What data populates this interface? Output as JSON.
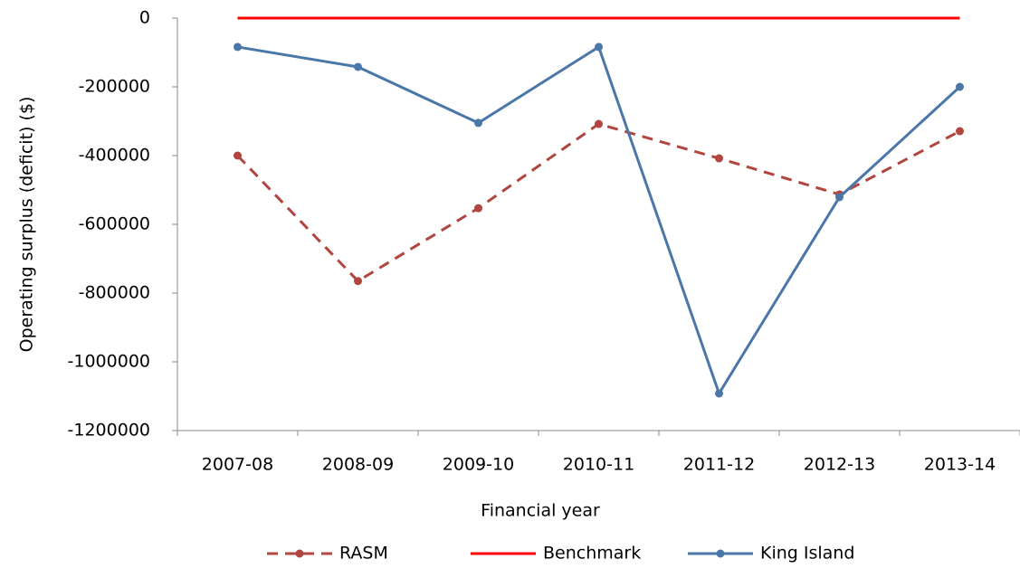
{
  "chart_data": {
    "type": "line",
    "y_label": "Operating surplus (deficit) ($)",
    "x_label": "Financial year",
    "categories": [
      "2007-08",
      "2008-09",
      "2009-10",
      "2010-11",
      "2011-12",
      "2012-13",
      "2013-14"
    ],
    "series": [
      {
        "name": "RASM",
        "color": "#b0463f",
        "dashed": true,
        "markers": true,
        "values": [
          -400000,
          -765000,
          -553000,
          -308000,
          -408000,
          -513000,
          -329000
        ]
      },
      {
        "name": "Benchmark",
        "color": "#ff0000",
        "dashed": false,
        "markers": false,
        "values": [
          0,
          0,
          0,
          0,
          0,
          0,
          0
        ]
      },
      {
        "name": "King Island",
        "color": "#4a76a8",
        "dashed": false,
        "markers": true,
        "values": [
          -84000,
          -142000,
          -305000,
          -84000,
          -1092000,
          -521000,
          -200000
        ]
      }
    ],
    "ylim": [
      -1200000,
      0
    ],
    "yticks": [
      -1200000,
      -1000000,
      -800000,
      -600000,
      -400000,
      -200000,
      0
    ],
    "grid": false,
    "legend": "bottom"
  }
}
